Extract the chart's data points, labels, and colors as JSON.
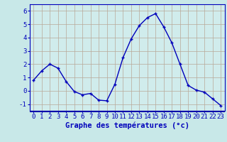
{
  "hours": [
    0,
    1,
    2,
    3,
    4,
    5,
    6,
    7,
    8,
    9,
    10,
    11,
    12,
    13,
    14,
    15,
    16,
    17,
    18,
    19,
    20,
    21,
    22,
    23
  ],
  "temps": [
    0.8,
    1.5,
    2.0,
    1.7,
    0.7,
    -0.05,
    -0.3,
    -0.2,
    -0.7,
    -0.75,
    0.5,
    2.5,
    3.9,
    4.9,
    5.5,
    5.8,
    4.8,
    3.6,
    2.0,
    0.4,
    0.05,
    -0.1,
    -0.6,
    -1.1
  ],
  "line_color": "#0000bb",
  "marker": "+",
  "bg_color": "#c8e8e8",
  "plot_bg_color": "#d0ecec",
  "grid_color": "#b8a898",
  "xlabel": "Graphe des températures (°c)",
  "ylabel_ticks": [
    -1,
    0,
    1,
    2,
    3,
    4,
    5,
    6
  ],
  "ylim": [
    -1.5,
    6.5
  ],
  "xlim": [
    -0.5,
    23.5
  ],
  "xlabel_fontsize": 7.5,
  "tick_fontsize": 6.5,
  "label_color": "#0000bb",
  "bottom_bar_color": "#0000aa",
  "bottom_bar_height": 0.055
}
